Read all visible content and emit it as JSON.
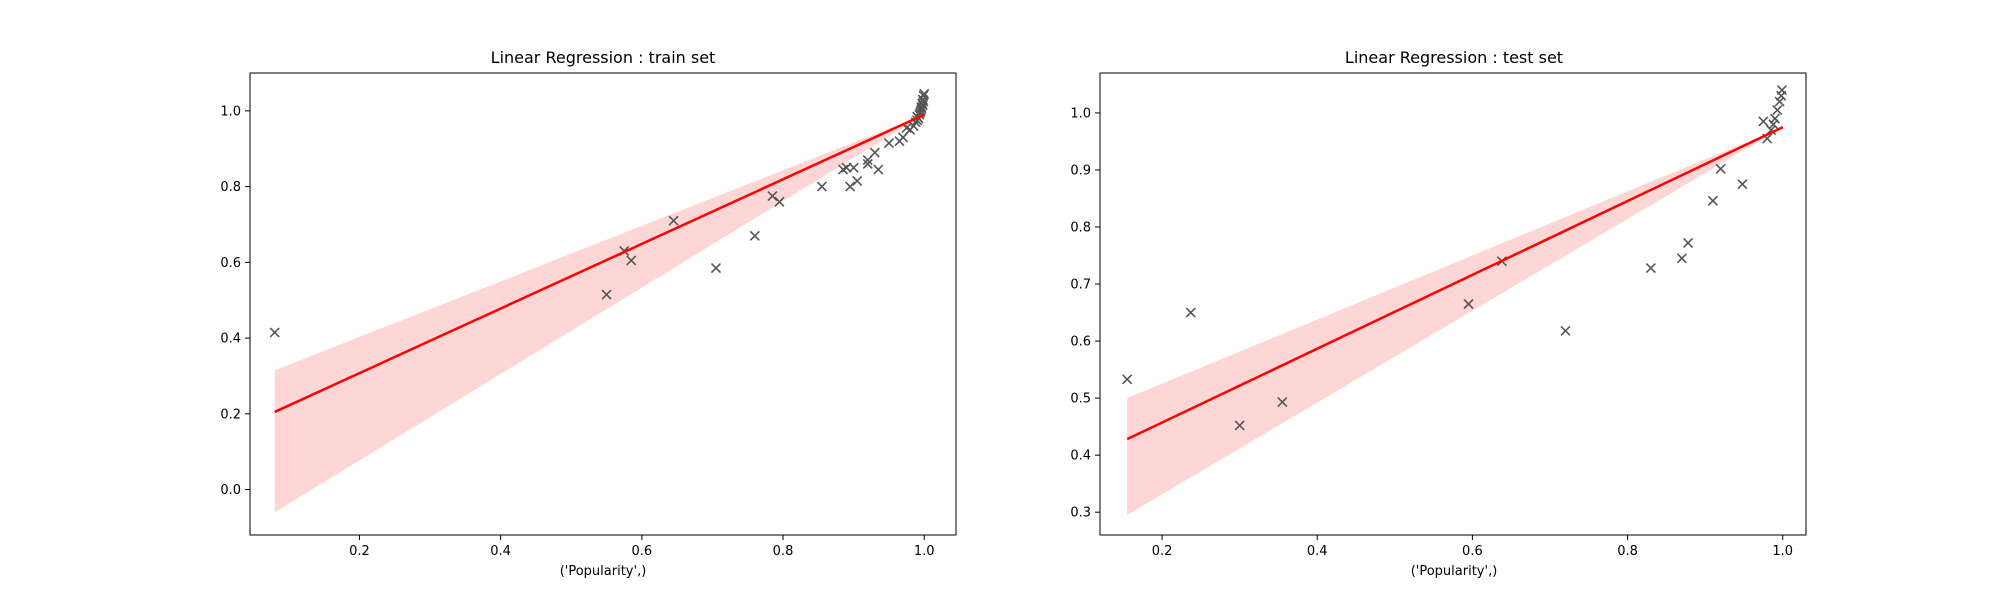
{
  "chart_data": [
    {
      "type": "scatter",
      "title": "Linear Regression : train set",
      "xlabel": "('Popularity',)",
      "ylabel": "",
      "xlim": [
        0.045,
        1.045
      ],
      "ylim": [
        -0.12,
        1.1
      ],
      "xticks": [
        "0.2",
        "0.4",
        "0.6",
        "0.8",
        "1.0"
      ],
      "yticks": [
        "0.0",
        "0.2",
        "0.4",
        "0.6",
        "0.8",
        "1.0"
      ],
      "grid": false,
      "marker": "x",
      "marker_color": "#555555",
      "fit_color": "#ff0000",
      "band_color": "#ffd6d6",
      "fit_line": {
        "x": [
          0.08,
          1.0
        ],
        "y": [
          0.205,
          0.99
        ]
      },
      "confidence_band": {
        "x": [
          0.08,
          1.0
        ],
        "lower": [
          -0.06,
          0.99
        ],
        "upper": [
          0.315,
          0.99
        ]
      },
      "points": {
        "x": [
          0.08,
          0.55,
          0.575,
          0.585,
          0.645,
          0.705,
          0.76,
          0.785,
          0.795,
          0.855,
          0.885,
          0.89,
          0.895,
          0.905,
          0.92,
          0.935,
          0.95,
          0.97,
          0.985,
          0.988,
          0.99,
          0.992,
          0.993,
          0.995,
          0.996,
          0.997,
          0.998,
          0.999,
          1.0,
          0.9,
          0.98,
          0.975,
          0.965,
          0.92,
          0.93,
          0.99,
          0.994,
          0.996,
          0.998,
          0.999
        ],
        "y": [
          0.415,
          0.515,
          0.63,
          0.605,
          0.71,
          0.585,
          0.67,
          0.775,
          0.76,
          0.8,
          0.845,
          0.85,
          0.8,
          0.815,
          0.87,
          0.845,
          0.915,
          0.93,
          0.96,
          0.97,
          0.975,
          0.98,
          0.99,
          1.0,
          1.01,
          1.02,
          1.03,
          1.04,
          1.045,
          0.85,
          0.95,
          0.955,
          0.92,
          0.86,
          0.89,
          0.985,
          0.995,
          1.005,
          1.015,
          1.025
        ]
      }
    },
    {
      "type": "scatter",
      "title": "Linear Regression : test set",
      "xlabel": "('Popularity',)",
      "ylabel": "",
      "xlim": [
        0.12,
        1.03
      ],
      "ylim": [
        0.26,
        1.07
      ],
      "xticks": [
        "0.2",
        "0.4",
        "0.6",
        "0.8",
        "1.0"
      ],
      "yticks": [
        "0.3",
        "0.4",
        "0.5",
        "0.6",
        "0.7",
        "0.8",
        "0.9",
        "1.0"
      ],
      "grid": false,
      "marker": "x",
      "marker_color": "#555555",
      "fit_color": "#ff0000",
      "band_color": "#ffd6d6",
      "fit_line": {
        "x": [
          0.155,
          1.0
        ],
        "y": [
          0.428,
          0.975
        ]
      },
      "confidence_band": {
        "x": [
          0.155,
          1.0
        ],
        "lower": [
          0.295,
          0.975
        ],
        "upper": [
          0.5,
          0.975
        ]
      },
      "points": {
        "x": [
          0.155,
          0.237,
          0.3,
          0.355,
          0.595,
          0.638,
          0.72,
          0.83,
          0.87,
          0.878,
          0.91,
          0.92,
          0.948,
          0.975,
          0.98,
          0.985,
          0.988,
          0.99,
          0.993,
          0.996,
          0.998,
          0.999
        ],
        "y": [
          0.533,
          0.65,
          0.452,
          0.493,
          0.665,
          0.74,
          0.618,
          0.728,
          0.745,
          0.772,
          0.846,
          0.902,
          0.875,
          0.985,
          0.955,
          0.97,
          0.98,
          0.99,
          1.005,
          1.02,
          1.03,
          1.04
        ]
      }
    }
  ]
}
